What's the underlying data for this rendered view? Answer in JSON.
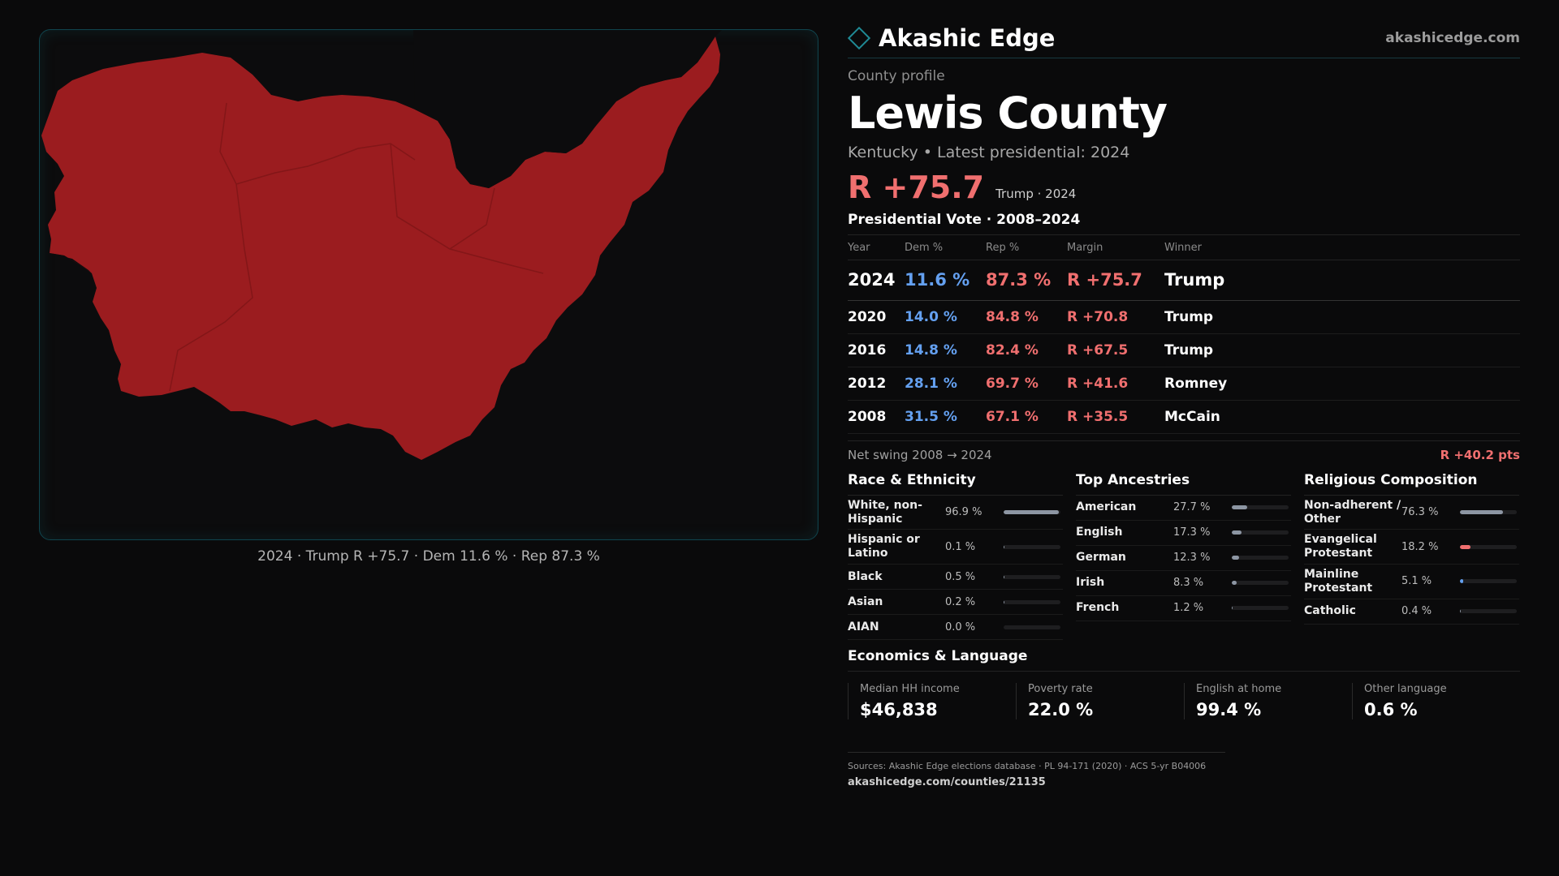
{
  "map": {
    "caption": "2024 · Trump R +75.7 · Dem 11.6 % · Rep 87.3 %",
    "fill_color": "#9b1c1f",
    "border_color": "#10454e"
  },
  "brand": {
    "name": "Akashic Edge",
    "url": "akashicedge.com",
    "icon": "diamond-icon"
  },
  "profile": {
    "kicker": "County profile",
    "title": "Lewis County",
    "subline": "Kentucky • Latest presidential: 2024",
    "margin": "R +75.7",
    "margin_note": "Trump · 2024"
  },
  "votes": {
    "title": "Presidential Vote · 2008–2024",
    "headers": [
      "Year",
      "Dem %",
      "Rep %",
      "Margin",
      "Winner"
    ],
    "rows": [
      {
        "year": "2024",
        "dem": "11.6 %",
        "rep": "87.3 %",
        "margin": "R +75.7",
        "winner": "Trump"
      },
      {
        "year": "2020",
        "dem": "14.0 %",
        "rep": "84.8 %",
        "margin": "R +70.8",
        "winner": "Trump"
      },
      {
        "year": "2016",
        "dem": "14.8 %",
        "rep": "82.4 %",
        "margin": "R +67.5",
        "winner": "Trump"
      },
      {
        "year": "2012",
        "dem": "28.1 %",
        "rep": "69.7 %",
        "margin": "R +41.6",
        "winner": "Romney"
      },
      {
        "year": "2008",
        "dem": "31.5 %",
        "rep": "67.1 %",
        "margin": "R +35.5",
        "winner": "McCain"
      }
    ],
    "swing_label": "Net swing 2008 → 2024",
    "swing_value": "R +40.2 pts"
  },
  "race": {
    "title": "Race & Ethnicity",
    "items": [
      {
        "label": "White, non-Hispanic",
        "value": "96.9 %",
        "pct": 96.9
      },
      {
        "label": "Hispanic or Latino",
        "value": "0.1 %",
        "pct": 0.1
      },
      {
        "label": "Black",
        "value": "0.5 %",
        "pct": 0.5
      },
      {
        "label": "Asian",
        "value": "0.2 %",
        "pct": 0.2
      },
      {
        "label": "AIAN",
        "value": "0.0 %",
        "pct": 0.0
      }
    ]
  },
  "ancestry": {
    "title": "Top Ancestries",
    "items": [
      {
        "label": "American",
        "value": "27.7 %",
        "pct": 27.7
      },
      {
        "label": "English",
        "value": "17.3 %",
        "pct": 17.3
      },
      {
        "label": "German",
        "value": "12.3 %",
        "pct": 12.3
      },
      {
        "label": "Irish",
        "value": "8.3 %",
        "pct": 8.3
      },
      {
        "label": "French",
        "value": "1.2 %",
        "pct": 1.2
      }
    ]
  },
  "religion": {
    "title": "Religious Composition",
    "items": [
      {
        "label": "Non-adherent / Other",
        "value": "76.3 %",
        "pct": 76.3,
        "color": "#8d96a3"
      },
      {
        "label": "Evangelical Protestant",
        "value": "18.2 %",
        "pct": 18.2,
        "color": "#f06f6f"
      },
      {
        "label": "Mainline Protestant",
        "value": "5.1 %",
        "pct": 5.1,
        "color": "#64a0f0"
      },
      {
        "label": "Catholic",
        "value": "0.4 %",
        "pct": 0.4,
        "color": "#8d96a3"
      }
    ]
  },
  "economics": {
    "title": "Economics & Language",
    "cells": [
      {
        "label": "Median HH income",
        "value": "$46,838"
      },
      {
        "label": "Poverty rate",
        "value": "22.0 %"
      },
      {
        "label": "English at home",
        "value": "99.4 %"
      },
      {
        "label": "Other language",
        "value": "0.6 %"
      }
    ]
  },
  "footer": {
    "sources": "Sources: Akashic Edge elections database · PL 94-171 (2020) · ACS 5-yr B04006",
    "url": "akashicedge.com/counties/21135"
  }
}
